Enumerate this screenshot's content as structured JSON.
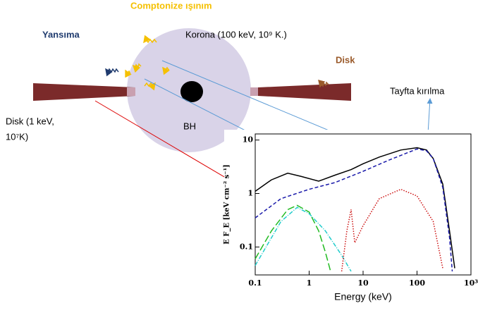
{
  "diagram": {
    "compton": "Comptonize ışınım",
    "reflection": "Yansıma",
    "corona": "Korona (100 keV, 10⁹ K.)",
    "disk_right": "Disk",
    "break": "Tayfta kırılma",
    "disk_left": [
      "Disk (1 keV,",
      "10⁷K)"
    ],
    "bh": "BH"
  },
  "chart_data": {
    "type": "line",
    "xlabel": "Energy (keV)",
    "ylabel": "E F_E [keV cm⁻² s⁻¹]",
    "log_x": true,
    "log_y": true,
    "xlim": [
      0.1,
      1000
    ],
    "ylim": [
      0.03,
      13
    ],
    "xticks": [
      0.1,
      1,
      10,
      100,
      {
        "value": 1000,
        "label": "10³"
      }
    ],
    "yticks": [
      0.1,
      1,
      10
    ],
    "series": [
      {
        "color": "#000000",
        "dash": "",
        "x": [
          0.1,
          0.2,
          0.4,
          0.7,
          1.5,
          3,
          6,
          10,
          20,
          50,
          100,
          150,
          200,
          300,
          400,
          500
        ],
        "values": [
          1.1,
          1.8,
          2.4,
          2.1,
          1.7,
          2.2,
          2.8,
          3.6,
          4.8,
          6.5,
          7.2,
          6.5,
          4.5,
          1.5,
          0.2,
          0.04
        ]
      },
      {
        "color": "#1a1aaa",
        "dash": "5 3",
        "x": [
          0.1,
          0.3,
          1,
          3,
          10,
          30,
          100,
          150,
          200,
          300,
          400,
          450
        ],
        "values": [
          0.35,
          0.8,
          1.2,
          1.6,
          2.6,
          4.2,
          6.8,
          6.3,
          4.5,
          1.3,
          0.15,
          0.035
        ]
      },
      {
        "color": "#22bb22",
        "dash": "10 4",
        "x": [
          0.1,
          0.2,
          0.4,
          0.6,
          1,
          1.5,
          2,
          2.5
        ],
        "values": [
          0.06,
          0.2,
          0.5,
          0.6,
          0.45,
          0.2,
          0.08,
          0.035
        ]
      },
      {
        "color": "#22cccc",
        "dash": "6 2 1 2",
        "x": [
          0.1,
          0.3,
          0.6,
          1,
          2,
          4,
          6
        ],
        "values": [
          0.045,
          0.3,
          0.55,
          0.42,
          0.2,
          0.07,
          0.035
        ]
      },
      {
        "color": "#cc1111",
        "dash": "1.5 2",
        "x": [
          4,
          5,
          6,
          7,
          10,
          20,
          50,
          100,
          200,
          300
        ],
        "values": [
          0.035,
          0.2,
          0.5,
          0.12,
          0.25,
          0.8,
          1.2,
          0.9,
          0.3,
          0.04
        ]
      }
    ]
  }
}
